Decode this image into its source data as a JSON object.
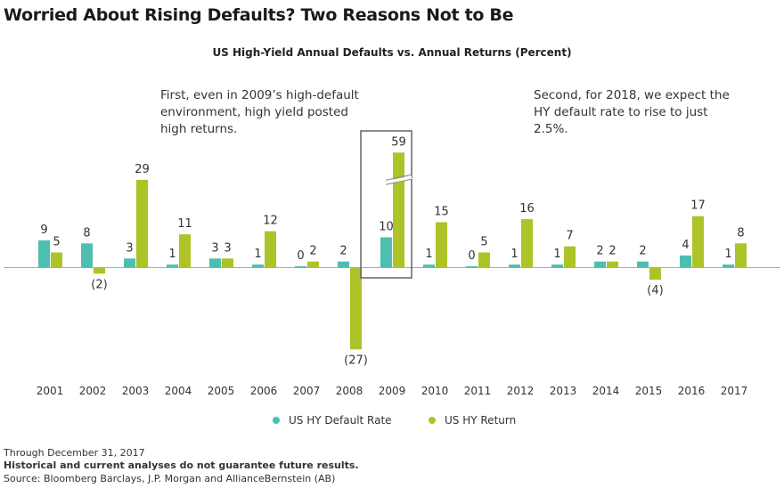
{
  "title": "Worried About Rising Defaults? Two Reasons Not to Be",
  "annotations": [
    "First, even in 2009’s high-default environment, high yield posted high returns.",
    "Second, for 2018, we expect the HY default rate to rise to just 2.5%."
  ],
  "footer": {
    "date": "Through December 31, 2017",
    "disclaimer": "Historical and current analyses do not guarantee future results.",
    "source": "Source: Bloomberg Barclays, J.P. Morgan and AllianceBernstein (AB)"
  },
  "chart_data": {
    "type": "bar",
    "title": "US High-Yield Annual Defaults vs. Annual Returns (Percent)",
    "categories": [
      "2001",
      "2002",
      "2003",
      "2004",
      "2005",
      "2006",
      "2007",
      "2008",
      "2009",
      "2010",
      "2011",
      "2012",
      "2013",
      "2014",
      "2015",
      "2016",
      "2017"
    ],
    "series": [
      {
        "name": "US HY Default Rate",
        "color": "#4dbfb0",
        "values": [
          9,
          8,
          3,
          1,
          3,
          1,
          0,
          2,
          10,
          1,
          0,
          1,
          1,
          2,
          2,
          4,
          1
        ]
      },
      {
        "name": "US HY Return",
        "color": "#aec327",
        "values": [
          5,
          -2,
          29,
          11,
          3,
          12,
          2,
          -27,
          59,
          15,
          5,
          16,
          7,
          2,
          -4,
          17,
          8
        ]
      }
    ],
    "negative_label_format": "parentheses",
    "broken_axis_category": "2009",
    "highlighted_category": "2009",
    "legend": "bottom",
    "grid": false
  }
}
